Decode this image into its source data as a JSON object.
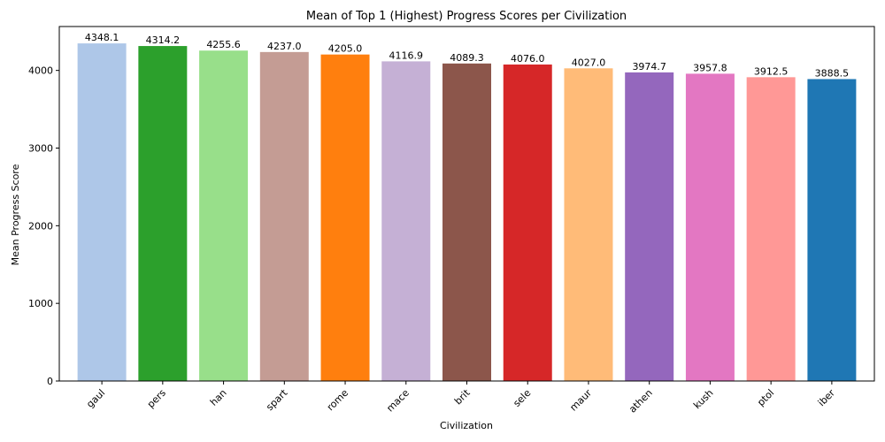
{
  "chart_data": {
    "type": "bar",
    "title": "Mean of Top 1 (Highest) Progress Scores per Civilization",
    "xlabel": "Civilization",
    "ylabel": "Mean Progress Score",
    "ylim": [
      0,
      4565.5
    ],
    "yticks": [
      0,
      1000,
      2000,
      3000,
      4000
    ],
    "grid": false,
    "legend": "none",
    "categories": [
      "gaul",
      "pers",
      "han",
      "spart",
      "rome",
      "mace",
      "brit",
      "sele",
      "maur",
      "athen",
      "kush",
      "ptol",
      "iber"
    ],
    "values": [
      4348.1,
      4314.2,
      4255.6,
      4237.0,
      4205.0,
      4116.9,
      4089.3,
      4076.0,
      4027.0,
      3974.7,
      3957.8,
      3912.5,
      3888.5
    ],
    "value_labels": [
      "4348.1",
      "4314.2",
      "4255.6",
      "4237.0",
      "4205.0",
      "4116.9",
      "4089.3",
      "4076.0",
      "4027.0",
      "3974.7",
      "3957.8",
      "3912.5",
      "3888.5"
    ],
    "colors": [
      "#aec7e8",
      "#2ca02c",
      "#98df8a",
      "#c49c94",
      "#ff7f0e",
      "#c5b0d5",
      "#8c564b",
      "#d62728",
      "#ffbb78",
      "#9467bd",
      "#e377c2",
      "#ff9896",
      "#1f77b4"
    ]
  }
}
